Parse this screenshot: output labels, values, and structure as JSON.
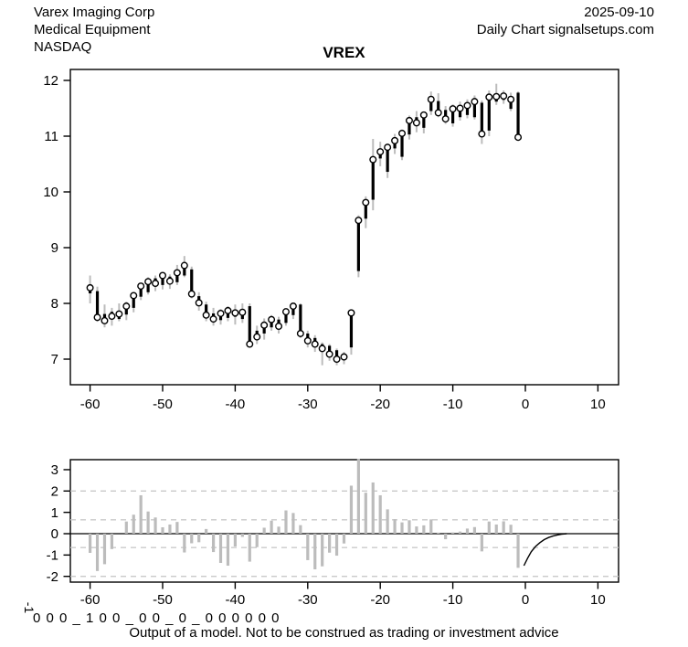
{
  "header": {
    "company": "Varex Imaging Corp",
    "industry": "Medical Equipment",
    "exchange": "NASDAQ",
    "date": "2025-09-10",
    "source": "Daily Chart signalsetups.com"
  },
  "footer": {
    "left_rotated_label": "-1",
    "signal_string": "0 0 0 _ 1 0 0 _ 0 0 _ 0 _ 0 0 0 0 0 0",
    "disclaimer": "Output of a model. Not to be construed as trading or investment advice"
  },
  "colors": {
    "background": "#ffffff",
    "bar_gray": "#bcbcbc",
    "dashed_gray": "#c9c9c9",
    "black": "#000000"
  },
  "chart_data": [
    {
      "type": "bar",
      "subtype": "ohlc-daily-price",
      "title": "VREX",
      "xlabel": "",
      "ylabel": "",
      "xlim": [
        -62.5,
        12.5
      ],
      "ylim": [
        6.8,
        12.1
      ],
      "x_ticks": [
        -60,
        -50,
        -40,
        -30,
        -20,
        -10,
        0,
        10
      ],
      "y_ticks": [
        7,
        8,
        9,
        10,
        11,
        12
      ],
      "grid": false,
      "marker": "open-circle-at-close",
      "days": [
        -60,
        -59,
        -58,
        -57,
        -56,
        -55,
        -54,
        -53,
        -52,
        -51,
        -50,
        -49,
        -48,
        -47,
        -46,
        -45,
        -44,
        -43,
        -42,
        -41,
        -40,
        -39,
        -38,
        -37,
        -36,
        -35,
        -34,
        -33,
        -32,
        -31,
        -30,
        -29,
        -28,
        -27,
        -26,
        -25,
        -24,
        -23,
        -22,
        -21,
        -20,
        -19,
        -18,
        -17,
        -16,
        -15,
        -14,
        -13,
        -12,
        -11,
        -10,
        -9,
        -8,
        -7,
        -6,
        -5,
        -4,
        -3,
        -2,
        -1
      ],
      "open": [
        8.18,
        8.22,
        7.81,
        7.85,
        7.72,
        7.8,
        7.92,
        8.12,
        8.2,
        8.45,
        8.33,
        8.48,
        8.38,
        8.5,
        8.61,
        8.13,
        7.98,
        7.82,
        7.7,
        7.74,
        7.76,
        7.72,
        7.95,
        7.51,
        7.46,
        7.57,
        7.71,
        7.65,
        7.79,
        7.98,
        7.46,
        7.38,
        7.27,
        7.24,
        7.16,
        6.98,
        7.21,
        8.58,
        9.52,
        9.86,
        10.6,
        10.36,
        10.78,
        10.63,
        11.03,
        11.34,
        11.15,
        11.45,
        11.63,
        11.47,
        11.23,
        11.34,
        11.38,
        11.34,
        11.6,
        11.1,
        11.62,
        11.65,
        11.49,
        11.78
      ],
      "close": [
        8.28,
        7.75,
        7.69,
        7.77,
        7.81,
        7.95,
        8.14,
        8.31,
        8.39,
        8.36,
        8.5,
        8.4,
        8.55,
        8.68,
        8.17,
        8.01,
        7.79,
        7.72,
        7.82,
        7.87,
        7.83,
        7.84,
        7.27,
        7.4,
        7.61,
        7.71,
        7.59,
        7.85,
        7.95,
        7.46,
        7.33,
        7.27,
        7.19,
        7.09,
        7.0,
        7.04,
        7.83,
        9.49,
        9.81,
        10.58,
        10.72,
        10.8,
        10.92,
        11.05,
        11.28,
        11.24,
        11.38,
        11.66,
        11.42,
        11.31,
        11.49,
        11.5,
        11.55,
        11.62,
        11.04,
        11.7,
        11.71,
        11.72,
        11.66,
        10.98
      ],
      "high": [
        8.5,
        8.3,
        7.98,
        7.92,
        8.0,
        8.03,
        8.2,
        8.36,
        8.47,
        8.5,
        8.55,
        8.52,
        8.69,
        8.85,
        8.66,
        8.2,
        8.03,
        7.92,
        7.9,
        7.95,
        7.98,
        8.0,
        8.0,
        7.6,
        7.73,
        7.79,
        7.76,
        7.91,
        7.99,
        8.0,
        7.51,
        7.43,
        7.3,
        7.27,
        7.19,
        7.13,
        7.87,
        9.58,
        9.92,
        10.95,
        10.9,
        10.87,
        11.04,
        11.12,
        11.37,
        11.45,
        11.43,
        11.8,
        11.77,
        11.54,
        11.57,
        11.62,
        11.66,
        11.73,
        11.64,
        11.82,
        11.94,
        11.82,
        11.78,
        11.8
      ],
      "low": [
        8.0,
        7.67,
        7.57,
        7.6,
        7.68,
        7.7,
        7.84,
        8.06,
        8.16,
        8.22,
        8.25,
        8.26,
        8.33,
        8.47,
        8.09,
        7.87,
        7.68,
        7.6,
        7.62,
        7.68,
        7.62,
        7.65,
        7.21,
        7.27,
        7.35,
        7.51,
        7.46,
        7.6,
        7.72,
        7.38,
        7.21,
        7.13,
        6.89,
        6.97,
        6.89,
        6.91,
        7.08,
        8.47,
        9.35,
        9.67,
        10.46,
        10.25,
        10.68,
        10.57,
        10.94,
        11.07,
        11.05,
        11.38,
        11.34,
        11.22,
        11.17,
        11.28,
        11.32,
        11.3,
        10.86,
        11.0,
        11.56,
        11.58,
        11.45,
        10.93
      ]
    },
    {
      "type": "bar",
      "subtype": "model-indicator",
      "title": "",
      "xlabel": "",
      "ylabel": "",
      "xlim": [
        -62.5,
        12.5
      ],
      "ylim": [
        -2.1,
        3.6
      ],
      "x_ticks": [
        -60,
        -50,
        -40,
        -30,
        -20,
        -10,
        0,
        10
      ],
      "y_ticks": [
        -2,
        -1,
        0,
        1,
        2,
        3
      ],
      "hlines_dashed": [
        2,
        0.65,
        -0.65,
        -2
      ],
      "hline_solid": 0,
      "legend_position": "none",
      "days": [
        -60,
        -59,
        -58,
        -57,
        -56,
        -55,
        -54,
        -53,
        -52,
        -51,
        -50,
        -49,
        -48,
        -47,
        -46,
        -45,
        -44,
        -43,
        -42,
        -41,
        -40,
        -39,
        -38,
        -37,
        -36,
        -35,
        -34,
        -33,
        -32,
        -31,
        -30,
        -29,
        -28,
        -27,
        -26,
        -25,
        -24,
        -23,
        -22,
        -21,
        -20,
        -19,
        -18,
        -17,
        -16,
        -15,
        -14,
        -13,
        -12,
        -11,
        -10,
        -9,
        -8,
        -7,
        -6,
        -5,
        -4,
        -3,
        -2,
        -1
      ],
      "values": [
        -0.9,
        -1.75,
        -1.43,
        -0.72,
        0.0,
        0.57,
        0.89,
        1.8,
        1.04,
        0.76,
        0.3,
        0.43,
        0.55,
        -0.88,
        -0.45,
        -0.4,
        0.22,
        -0.86,
        -1.37,
        -1.5,
        -0.6,
        -0.15,
        -1.31,
        -0.63,
        0.28,
        0.61,
        0.33,
        1.09,
        0.97,
        0.4,
        -1.24,
        -1.67,
        -1.53,
        -0.89,
        -1.03,
        -0.46,
        2.25,
        3.5,
        1.92,
        2.4,
        1.8,
        1.14,
        0.68,
        0.53,
        0.63,
        0.34,
        0.39,
        0.67,
        0.05,
        -0.26,
        0.06,
        0.1,
        0.24,
        0.31,
        -0.83,
        0.57,
        0.43,
        0.58,
        0.42,
        -1.6
      ],
      "forecast_curve": {
        "x": [
          -0.2,
          0.3,
          0.8,
          1.4,
          2.0,
          2.6,
          3.2,
          3.8,
          4.4,
          5.0,
          5.7
        ],
        "y": [
          -1.5,
          -1.15,
          -0.85,
          -0.6,
          -0.42,
          -0.28,
          -0.18,
          -0.11,
          -0.06,
          -0.02,
          0.0
        ]
      }
    }
  ]
}
